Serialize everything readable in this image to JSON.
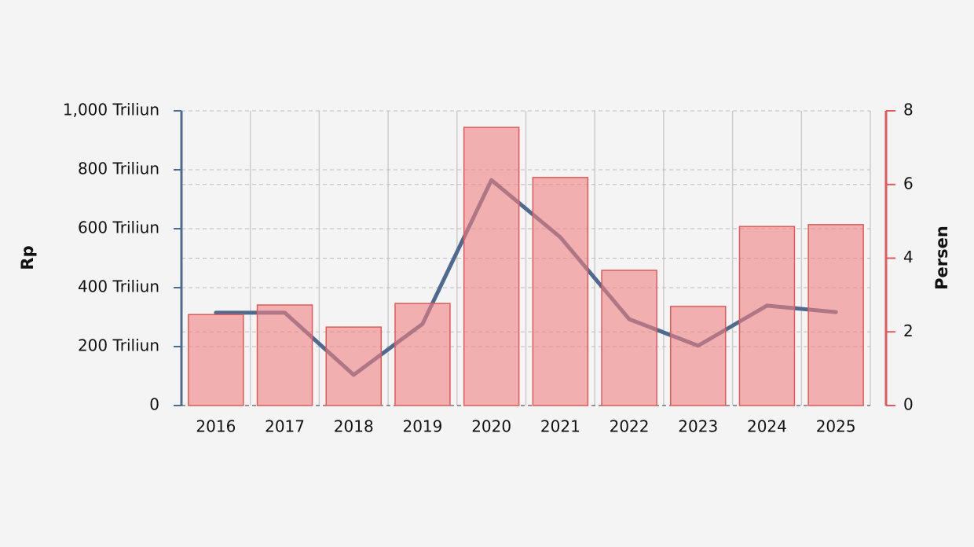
{
  "chart_data": {
    "type": "bar-line",
    "categories": [
      "2016",
      "2017",
      "2018",
      "2019",
      "2020",
      "2021",
      "2022",
      "2023",
      "2024",
      "2025"
    ],
    "series": [
      {
        "name": "Rp",
        "type": "line",
        "axis": "y",
        "color": "#4f6a8f",
        "values": [
          315,
          315,
          104,
          277,
          765,
          571,
          293,
          203,
          339,
          317
        ]
      },
      {
        "name": "Persen",
        "type": "bar",
        "axis": "y2",
        "color": "#f08080",
        "values": [
          2.47,
          2.73,
          2.13,
          2.77,
          7.55,
          6.19,
          3.67,
          2.69,
          4.86,
          4.91
        ]
      }
    ],
    "ylabel": "Rp",
    "y2label": "Persen",
    "ylim": [
      0,
      1000
    ],
    "yticks": [
      0,
      {
        "value": 200,
        "label": "200 Triliun"
      },
      {
        "value": 400,
        "label": "400 Triliun"
      },
      {
        "value": 600,
        "label": "600 Triliun"
      },
      {
        "value": 800,
        "label": "800 Triliun"
      },
      {
        "value": 1000,
        "label": "1,000 Triliun"
      }
    ],
    "y2lim": [
      0,
      8
    ],
    "y2ticks": [
      0,
      2,
      4,
      6,
      8
    ],
    "y_axis_color": "#4f6a8f",
    "y2_axis_color": "#e05a5a",
    "grid": true
  }
}
